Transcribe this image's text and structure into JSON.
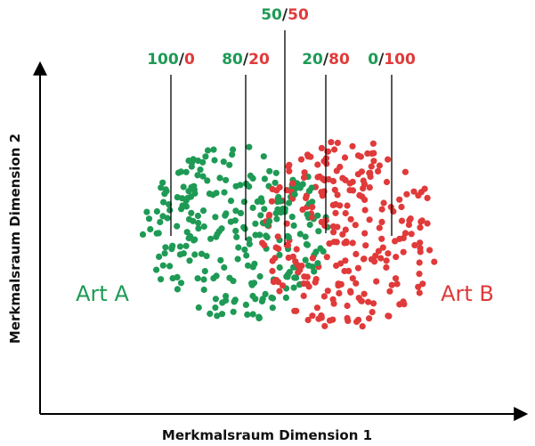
{
  "labels": [
    {
      "a": "100",
      "sep": "/",
      "b": "0"
    },
    {
      "a": "80",
      "sep": "/",
      "b": "20"
    },
    {
      "a": "50",
      "sep": "/",
      "b": "50"
    },
    {
      "a": "20",
      "sep": "/",
      "b": "80"
    },
    {
      "a": "0",
      "sep": "/",
      "b": "100"
    }
  ],
  "class_a": "Art A",
  "class_b": "Art B",
  "x_axis_label": "Merkmalsraum Dimension 1",
  "y_axis_label": "Merkmalsraum Dimension 2"
}
